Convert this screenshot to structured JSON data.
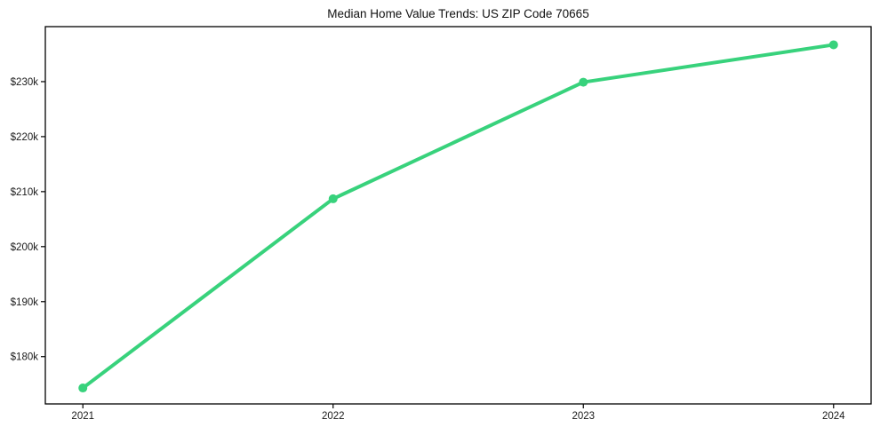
{
  "chart_data": {
    "type": "line",
    "title": "Median Home Value Trends: US ZIP Code 70665",
    "xlabel": "",
    "ylabel": "",
    "x": [
      2021,
      2022,
      2023,
      2024
    ],
    "series": [
      {
        "name": "Median Home Value",
        "values": [
          174300,
          208700,
          229900,
          236700
        ]
      }
    ],
    "xlim": [
      2020.85,
      2024.15
    ],
    "ylim": [
      171400,
      240000
    ],
    "xticks": [
      2021,
      2022,
      2023,
      2024
    ],
    "xtick_labels": [
      "2021",
      "2022",
      "2023",
      "2024"
    ],
    "yticks": [
      180000,
      190000,
      200000,
      210000,
      220000,
      230000
    ],
    "ytick_labels": [
      "$180k",
      "$190k",
      "$200k",
      "$210k",
      "$220k",
      "$230k"
    ],
    "grid": false,
    "legend_visible": false,
    "line_color": "#38d27c",
    "line_width": 4,
    "marker": "circle",
    "marker_radius": 5,
    "background_color": "#ffffff",
    "text_color": "#111111",
    "spine_color": "#000000"
  }
}
